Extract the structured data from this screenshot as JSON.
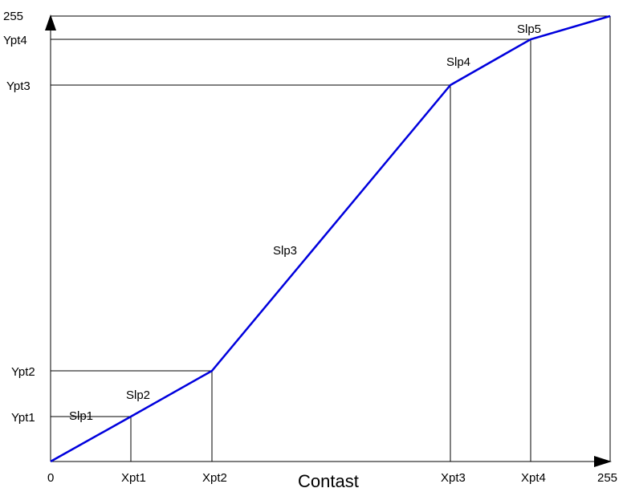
{
  "x_axis": {
    "title": "Contast",
    "origin_label": "0",
    "max_label": "255",
    "ticks": [
      "Xpt1",
      "Xpt2",
      "Xpt3",
      "Xpt4"
    ]
  },
  "y_axis": {
    "max_label": "255",
    "ticks": [
      "Ypt1",
      "Ypt2",
      "Ypt3",
      "Ypt4"
    ]
  },
  "segments": [
    "Slp1",
    "Slp2",
    "Slp3",
    "Slp4",
    "Slp5"
  ],
  "colors": {
    "curve": "#0000dd",
    "axes": "#000000",
    "guides": "#000000"
  }
}
